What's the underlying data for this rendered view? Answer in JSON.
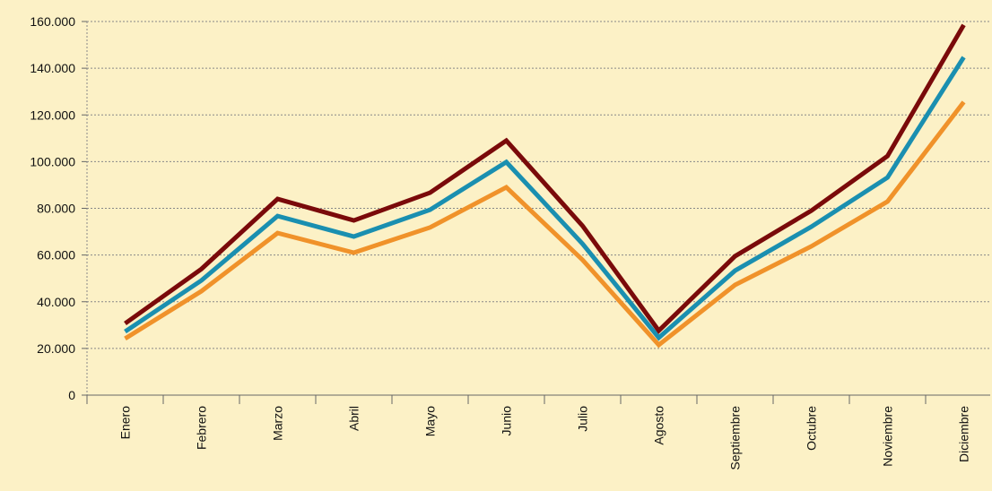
{
  "chart_data": {
    "type": "line",
    "categories": [
      "Enero",
      "Febrero",
      "Marzo",
      "Abril",
      "Mayo",
      "Junio",
      "Julio",
      "Agosto",
      "Septiembre",
      "Octubre",
      "Noviembre",
      "Diciembre"
    ],
    "series": [
      {
        "color": "#f0922a",
        "values": [
          24200,
          44500,
          69400,
          61000,
          71800,
          89000,
          57900,
          21500,
          47200,
          63700,
          82900,
          125500
        ]
      },
      {
        "color": "#1a8fb0",
        "values": [
          27200,
          49100,
          76700,
          67900,
          79400,
          99800,
          64800,
          24600,
          53300,
          72100,
          93200,
          144700
        ]
      },
      {
        "color": "#7a0a0a",
        "values": [
          30700,
          54000,
          84000,
          74800,
          86700,
          109000,
          72500,
          27600,
          59500,
          79000,
          102400,
          158500
        ]
      }
    ],
    "ylim": [
      0,
      160000
    ],
    "yticks": [
      0,
      {
        "value": 20000,
        "label": "20.000"
      },
      {
        "value": 40000,
        "label": "40.000"
      },
      {
        "value": 60000,
        "label": "60.000"
      },
      {
        "value": 80000,
        "label": "80.000"
      },
      {
        "value": 100000,
        "label": "100.000"
      },
      {
        "value": 120000,
        "label": "120.000"
      },
      {
        "value": 140000,
        "label": "140.000"
      },
      {
        "value": 160000,
        "label": "160.000"
      }
    ],
    "grid": true
  }
}
